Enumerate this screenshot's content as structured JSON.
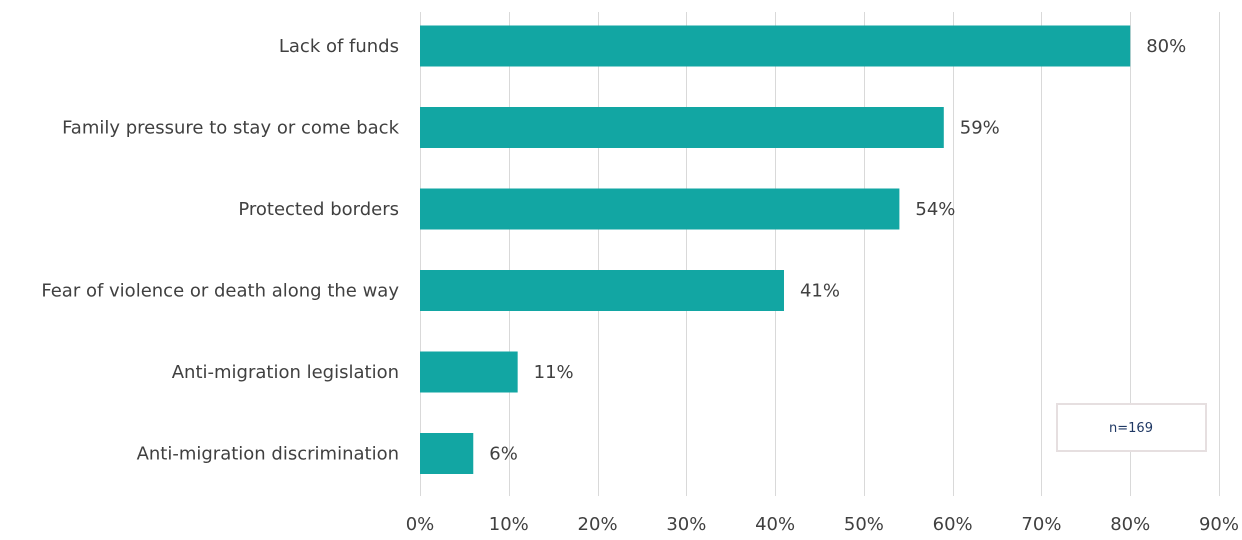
{
  "chart_data": {
    "type": "bar",
    "orientation": "horizontal",
    "categories": [
      "Lack of funds",
      "Family pressure to stay or come back",
      "Protected borders",
      "Fear of violence or death along the way",
      "Anti-migration legislation",
      "Anti-migration discrimination"
    ],
    "values": [
      80,
      59,
      54,
      41,
      11,
      6
    ],
    "value_labels": [
      "80%",
      "59%",
      "54%",
      "41%",
      "11%",
      "6%"
    ],
    "xlim": [
      0,
      90
    ],
    "xticks": [
      0,
      10,
      20,
      30,
      40,
      50,
      60,
      70,
      80,
      90
    ],
    "xtick_labels": [
      "0%",
      "10%",
      "20%",
      "30%",
      "40%",
      "50%",
      "60%",
      "70%",
      "80%",
      "90%"
    ],
    "grid": true,
    "bar_color": "#12a6a3",
    "title": "",
    "xlabel": "",
    "ylabel": ""
  },
  "annotation": {
    "text": "n=169"
  }
}
